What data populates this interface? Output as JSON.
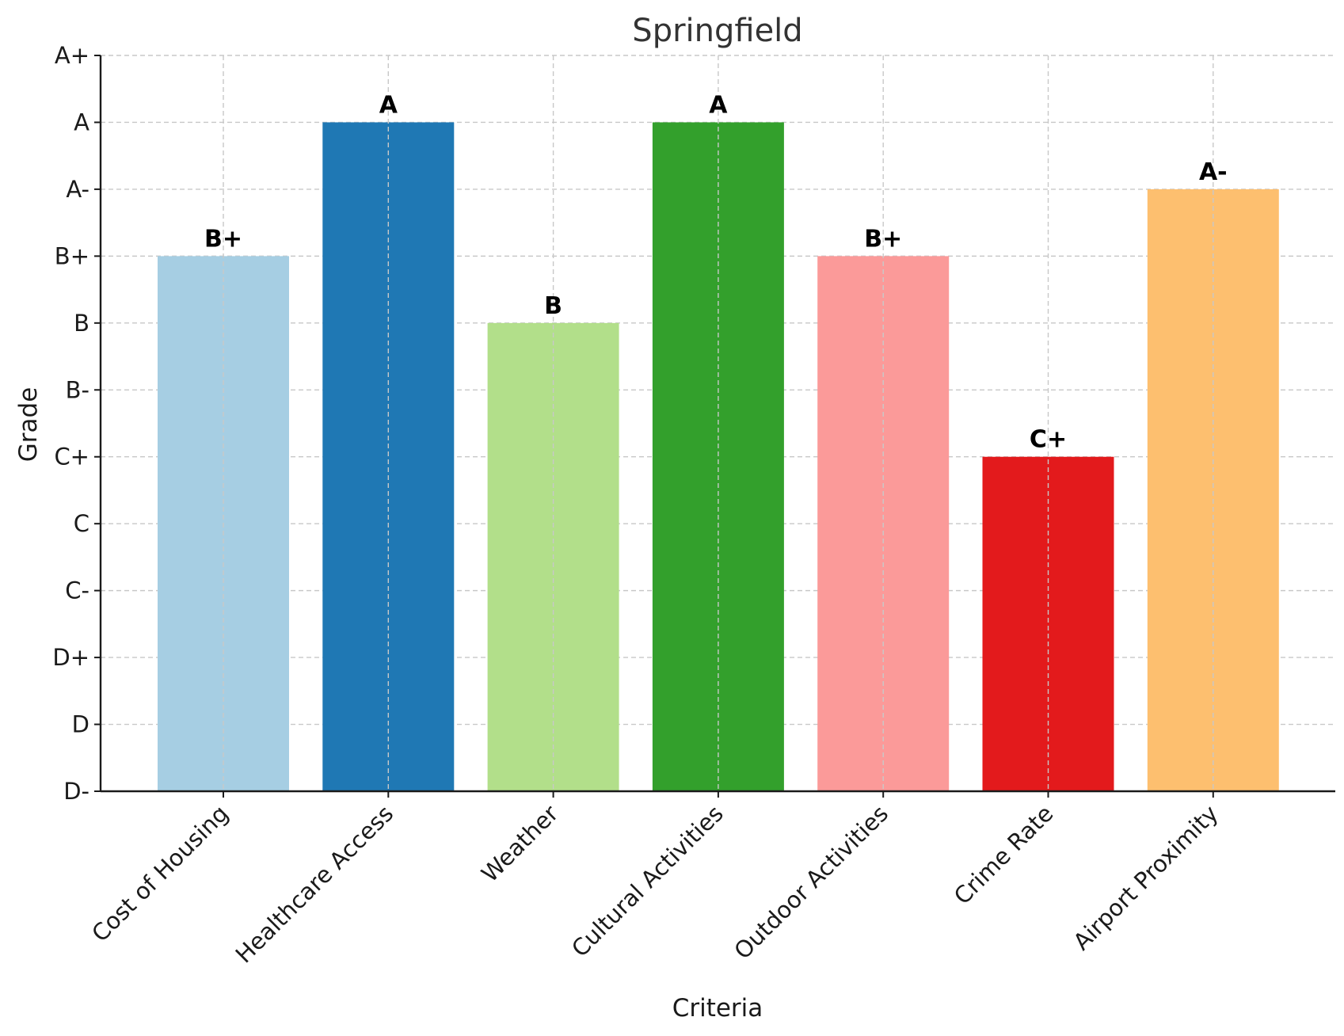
{
  "chart_data": {
    "type": "bar",
    "title": "Springfield",
    "xlabel": "Criteria",
    "ylabel": "Grade",
    "grade_scale": [
      "D-",
      "D",
      "D+",
      "C-",
      "C",
      "C+",
      "B-",
      "B",
      "B+",
      "A-",
      "A",
      "A+"
    ],
    "ylim": [
      0,
      11
    ],
    "grid": true,
    "categories": [
      "Cost of Housing",
      "Healthcare Access",
      "Weather",
      "Cultural Activities",
      "Outdoor Activities",
      "Crime Rate",
      "Airport Proximity"
    ],
    "values": [
      8,
      10,
      7,
      10,
      8,
      5,
      9
    ],
    "value_labels": [
      "B+",
      "A",
      "B",
      "A",
      "B+",
      "C+",
      "A-"
    ],
    "colors": [
      "#a6cee3",
      "#1f78b4",
      "#b2df8a",
      "#33a02c",
      "#fb9a99",
      "#e31a1c",
      "#fdbf6f"
    ]
  }
}
